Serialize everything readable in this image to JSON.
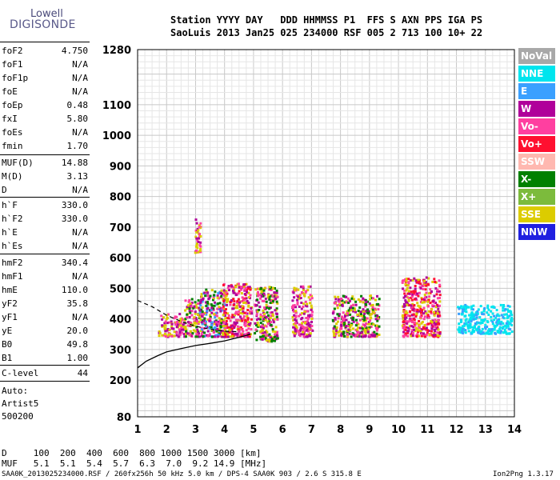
{
  "logo": {
    "top": "Lowell",
    "bottom": "DIGISONDE"
  },
  "header": {
    "line1": "Station YYYY DAY   DDD HHMMSS P1  FFS S AXN PPS IGA PS",
    "line2": "SaoLuis 2013 Jan25 025 234000 RSF 005 2 713 100 10+ 22"
  },
  "params": [
    {
      "k": "foF2",
      "v": "4.750"
    },
    {
      "k": "foF1",
      "v": "N/A"
    },
    {
      "k": "foF1p",
      "v": "N/A"
    },
    {
      "k": "foE",
      "v": "N/A"
    },
    {
      "k": "foEp",
      "v": "0.48"
    },
    {
      "k": "fxI",
      "v": "5.80"
    },
    {
      "k": "foEs",
      "v": "N/A"
    },
    {
      "k": "fmin",
      "v": "1.70"
    },
    {
      "k": "MUF(D)",
      "v": "14.88"
    },
    {
      "k": "M(D)",
      "v": "3.13"
    },
    {
      "k": "D",
      "v": "N/A"
    },
    {
      "k": "h`F",
      "v": "330.0"
    },
    {
      "k": "h`F2",
      "v": "330.0"
    },
    {
      "k": "h`E",
      "v": "N/A"
    },
    {
      "k": "h`Es",
      "v": "N/A"
    },
    {
      "k": "hmF2",
      "v": "340.4"
    },
    {
      "k": "hmF1",
      "v": "N/A"
    },
    {
      "k": "hmE",
      "v": "110.0"
    },
    {
      "k": "yF2",
      "v": "35.8"
    },
    {
      "k": "yF1",
      "v": "N/A"
    },
    {
      "k": "yE",
      "v": "20.0"
    },
    {
      "k": "B0",
      "v": "49.8"
    },
    {
      "k": "B1",
      "v": "1.00"
    },
    {
      "k": "C-level",
      "v": "44"
    }
  ],
  "auto": [
    "Auto:",
    "Artist5",
    "500200"
  ],
  "legend": [
    {
      "label": "NoVal",
      "color": "#a8a8a8"
    },
    {
      "label": "NNE",
      "color": "#00e5ee"
    },
    {
      "label": "E",
      "color": "#3aa0ff"
    },
    {
      "label": "W",
      "color": "#b0009a"
    },
    {
      "label": "Vo-",
      "color": "#ff3fa0"
    },
    {
      "label": "Vo+",
      "color": "#ff1030"
    },
    {
      "label": "SSW",
      "color": "#ffb8b0"
    },
    {
      "label": "X-",
      "color": "#008000"
    },
    {
      "label": "X+",
      "color": "#7cbb3c"
    },
    {
      "label": "SSE",
      "color": "#dccc00"
    },
    {
      "label": "NNW",
      "color": "#2020e0"
    }
  ],
  "footer": {
    "d_line": "D     100  200  400  600  800 1000 1500 3000 [km]",
    "muf_line": "MUF   5.1  5.1  5.4  5.7  6.3  7.0  9.2 14.9 [MHz]",
    "info_left": "SAA0K_2013025234000.RSF / 260fx256h 50 kHz 5.0 km / DPS-4 SAA0K 903 / 2.6 S 315.8 E",
    "info_right": "Ion2Png 1.3.17"
  },
  "chart_data": {
    "type": "scatter",
    "xlim": [
      1,
      14
    ],
    "ylim": [
      80,
      1280
    ],
    "xticks": [
      1,
      2,
      3,
      4,
      5,
      6,
      7,
      8,
      9,
      10,
      11,
      12,
      13,
      14
    ],
    "yticks": [
      80,
      200,
      300,
      400,
      500,
      600,
      700,
      800,
      900,
      1000,
      1100,
      1280
    ],
    "grid": true,
    "legend_position": "right",
    "dense_regions": [
      {
        "x": [
          1.7,
          2.6
        ],
        "y": [
          345,
          420
        ],
        "colors": [
          "#ff3fa0",
          "#b0009a",
          "#dccc00"
        ]
      },
      {
        "x": [
          2.6,
          3.1
        ],
        "y": [
          345,
          470
        ],
        "colors": [
          "#b0009a",
          "#dccc00",
          "#ff3fa0",
          "#008000"
        ]
      },
      {
        "x": [
          2.95,
          3.15
        ],
        "y": [
          620,
          740
        ],
        "colors": [
          "#b0009a",
          "#dccc00",
          "#ff3fa0"
        ]
      },
      {
        "x": [
          3.1,
          4.0
        ],
        "y": [
          345,
          500
        ],
        "colors": [
          "#b0009a",
          "#dccc00",
          "#ff3fa0",
          "#008000",
          "#3aa0ff"
        ]
      },
      {
        "x": [
          3.9,
          4.9
        ],
        "y": [
          345,
          520
        ],
        "colors": [
          "#b0009a",
          "#dccc00",
          "#ff3fa0",
          "#ff1030"
        ]
      },
      {
        "x": [
          5.0,
          5.8
        ],
        "y": [
          330,
          510
        ],
        "colors": [
          "#dccc00",
          "#b0009a",
          "#008000",
          "#ff3fa0"
        ]
      },
      {
        "x": [
          6.3,
          7.0
        ],
        "y": [
          345,
          510
        ],
        "colors": [
          "#b0009a",
          "#dccc00",
          "#ff3fa0"
        ]
      },
      {
        "x": [
          7.7,
          9.3
        ],
        "y": [
          345,
          480
        ],
        "colors": [
          "#dccc00",
          "#b0009a",
          "#ff3fa0",
          "#008000"
        ]
      },
      {
        "x": [
          10.1,
          11.4
        ],
        "y": [
          345,
          540
        ],
        "colors": [
          "#b0009a",
          "#dccc00",
          "#ff3fa0",
          "#ff1030"
        ]
      },
      {
        "x": [
          12.0,
          13.9
        ],
        "y": [
          355,
          450
        ],
        "colors": [
          "#00e5ee",
          "#3aa0ff",
          "#00e5ee"
        ]
      }
    ],
    "profile_curve": {
      "x": [
        1.0,
        1.3,
        1.7,
        2.0,
        2.5,
        3.0,
        3.5,
        4.0,
        4.5,
        4.9
      ],
      "y": [
        240,
        262,
        280,
        292,
        303,
        313,
        320,
        328,
        340,
        350
      ]
    },
    "dashed_curve": {
      "x": [
        1.0,
        1.5,
        2.0,
        2.5,
        3.0,
        3.5,
        4.0,
        4.5
      ],
      "y": [
        460,
        440,
        412,
        392,
        376,
        366,
        360,
        358
      ]
    }
  }
}
